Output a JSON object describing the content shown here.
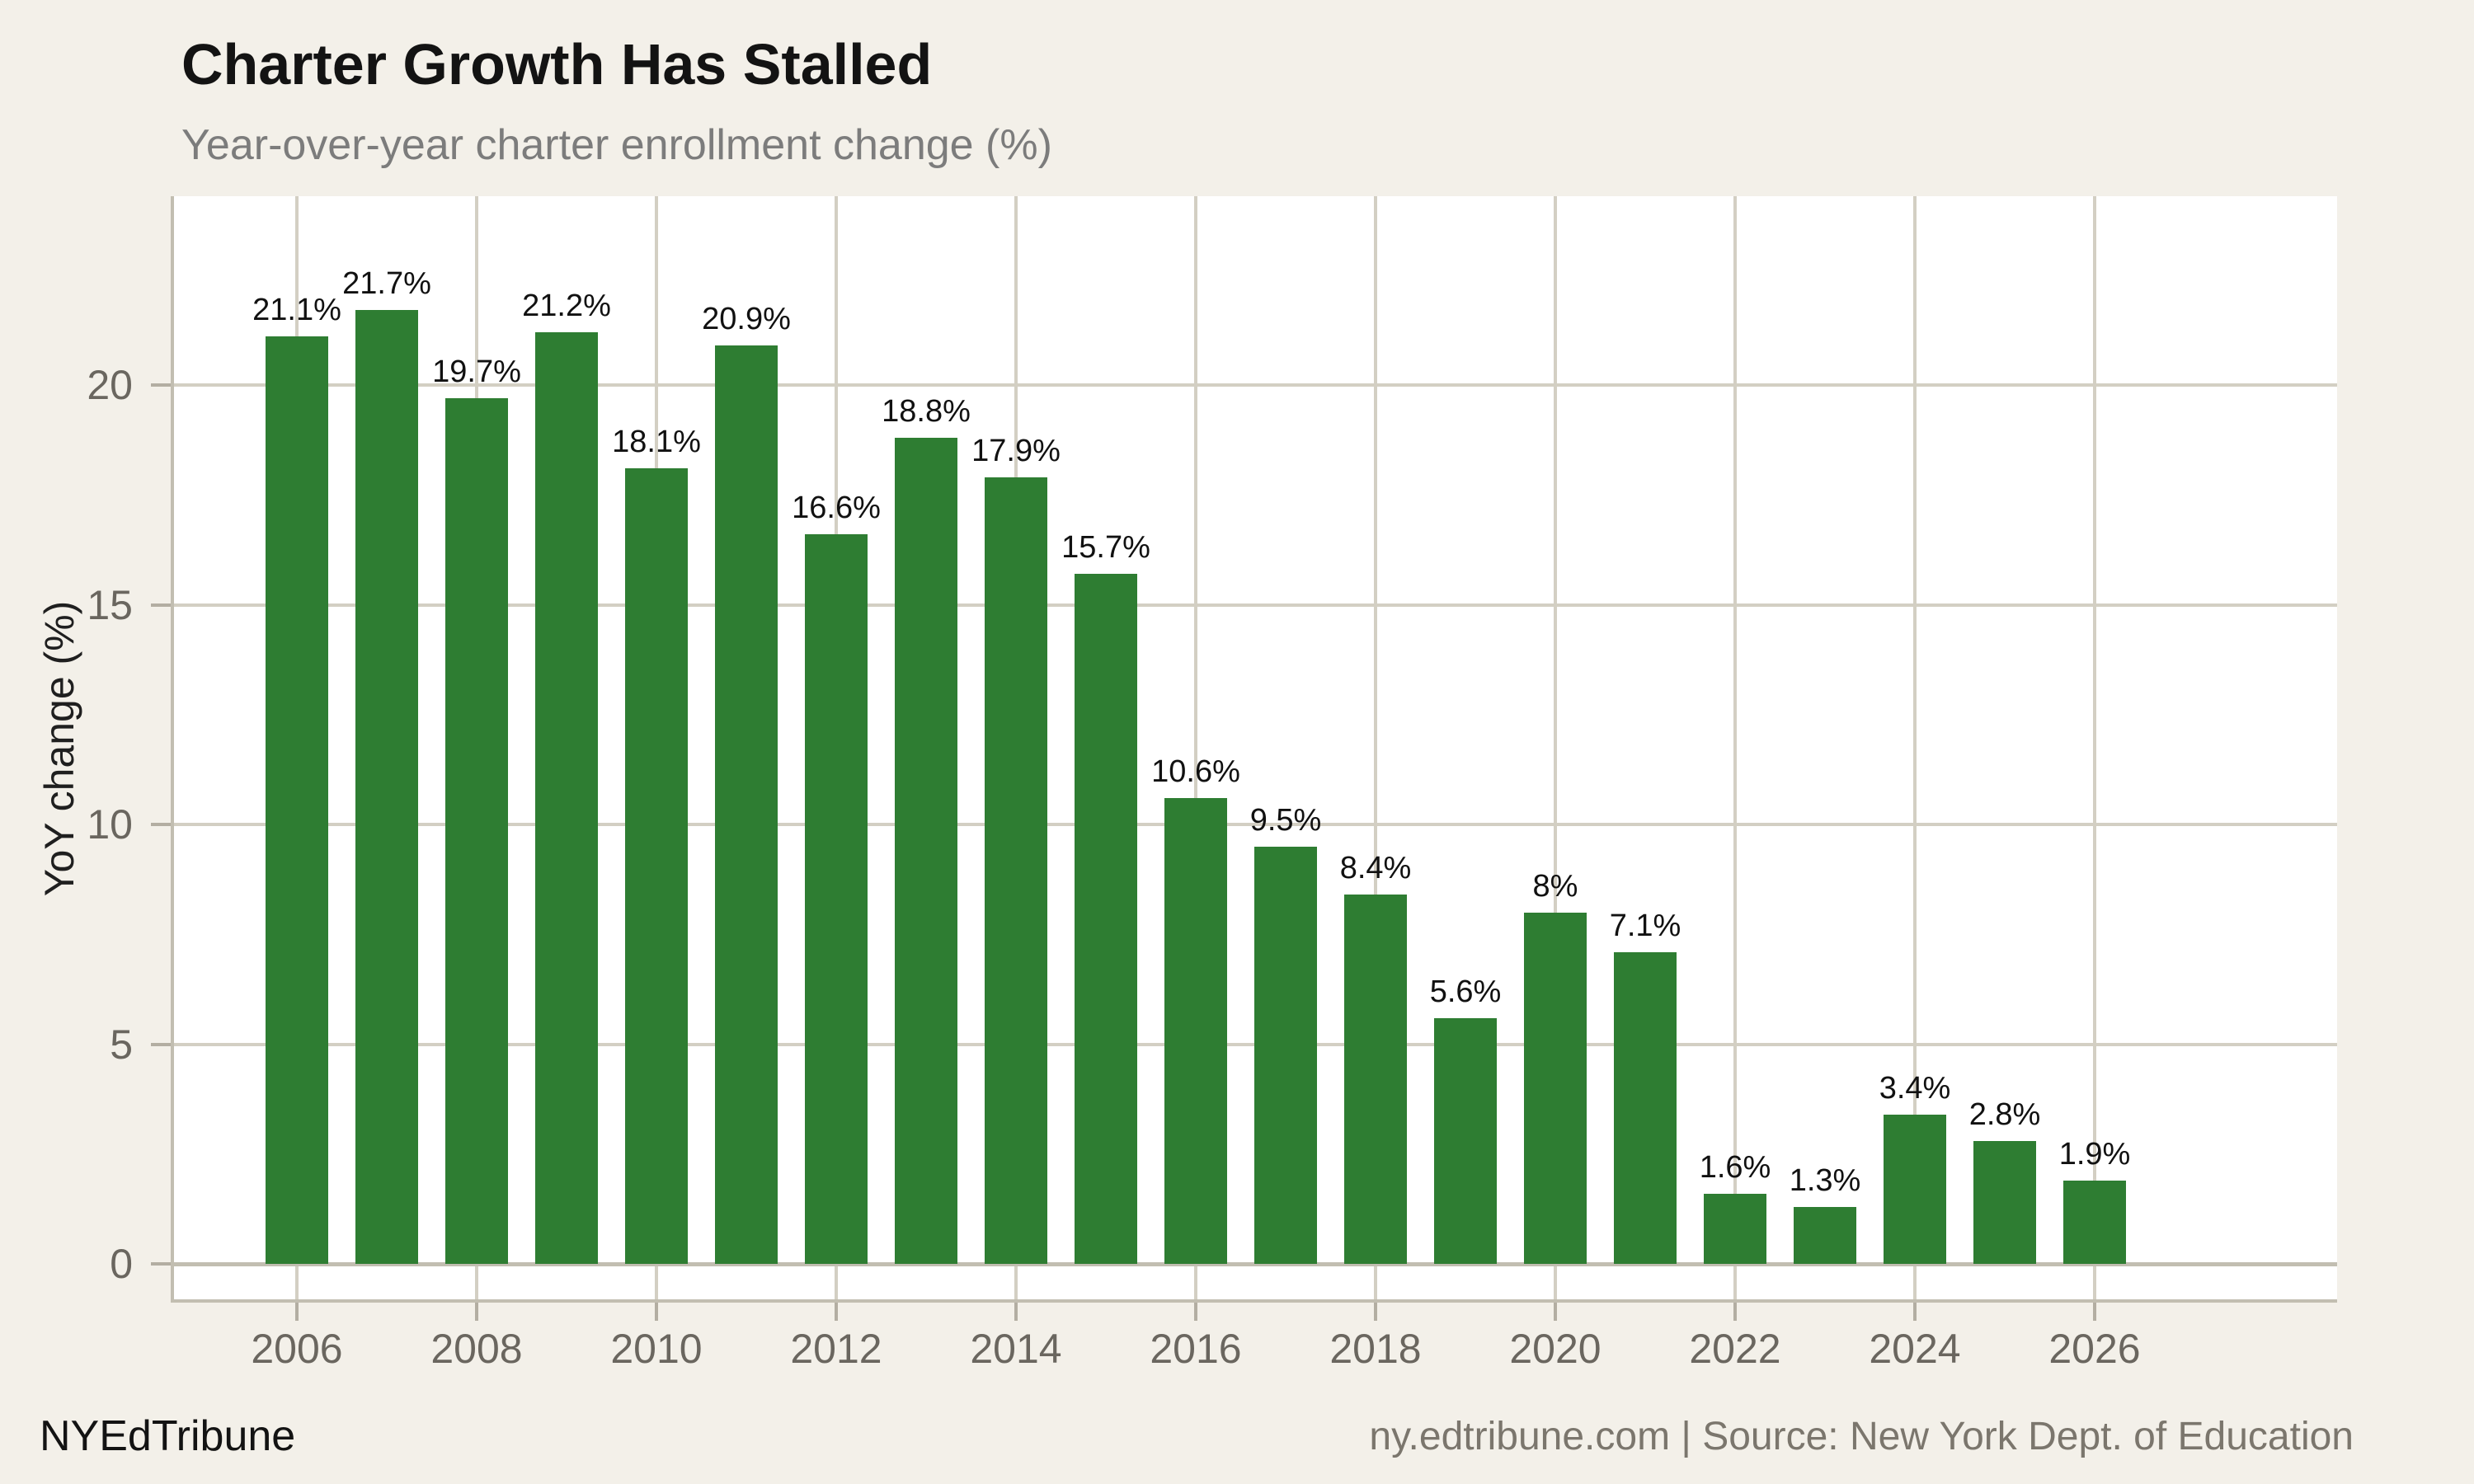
{
  "header": {
    "title": "Charter Growth Has Stalled",
    "subtitle": "Year-over-year charter enrollment change (%)"
  },
  "footer": {
    "brand": "NYEdTribune",
    "source": "ny.edtribune.com | Source: New York Dept. of Education"
  },
  "colors": {
    "background": "#f3f0e9",
    "panel": "#ffffff",
    "bar": "#2e7d32",
    "gridline": "#d3cfc3",
    "axis": "#c2beb1",
    "tick": "#b3aea2",
    "tick_label": "#6a665f",
    "title": "#131313",
    "subtitle": "#7c7c7c",
    "value_label": "#111111",
    "source_text": "#7b766d"
  },
  "chart_data": {
    "type": "bar",
    "title": "Charter Growth Has Stalled",
    "subtitle": "Year-over-year charter enrollment change (%)",
    "xlabel": "",
    "ylabel": "YoY change (%)",
    "categories": [
      2006,
      2007,
      2008,
      2009,
      2010,
      2011,
      2012,
      2013,
      2014,
      2015,
      2016,
      2017,
      2018,
      2019,
      2020,
      2021,
      2022,
      2023,
      2024,
      2025,
      2026
    ],
    "values": [
      21.1,
      21.7,
      19.7,
      21.2,
      18.1,
      20.9,
      16.6,
      18.8,
      17.9,
      15.7,
      10.6,
      9.5,
      8.4,
      5.6,
      8,
      7.1,
      1.6,
      1.3,
      3.4,
      2.8,
      1.9
    ],
    "bar_labels": [
      "21.1%",
      "21.7%",
      "19.7%",
      "21.2%",
      "18.1%",
      "20.9%",
      "16.6%",
      "18.8%",
      "17.9%",
      "15.7%",
      "10.6%",
      "9.5%",
      "8.4%",
      "5.6%",
      "8%",
      "7.1%",
      "1.6%",
      "1.3%",
      "3.4%",
      "2.8%",
      "1.9%"
    ],
    "yticks": [
      0,
      5,
      10,
      15,
      20
    ],
    "xticks": [
      2006,
      2008,
      2010,
      2012,
      2014,
      2016,
      2018,
      2020,
      2022,
      2024,
      2026
    ],
    "ylim": [
      -0.9,
      24.3
    ],
    "grid": true,
    "legend": false,
    "bar_color": "#2e7d32"
  }
}
